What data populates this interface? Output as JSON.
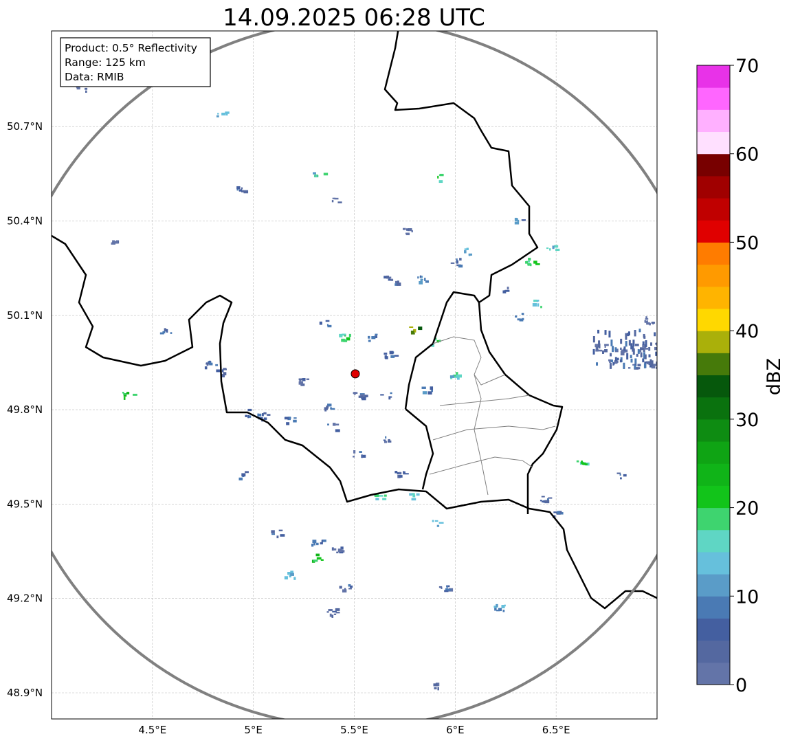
{
  "chart_data": {
    "type": "map",
    "title": "14.09.2025 06:28 UTC",
    "info_box": [
      "Product: 0.5° Reflectivity",
      "Range: 125 km",
      "Data: RMIB"
    ],
    "extent": {
      "lon": [
        4.0,
        7.0
      ],
      "lat": [
        48.817,
        51.004
      ]
    },
    "x_ticks": [
      {
        "value": 4.5,
        "label": "4.5°E"
      },
      {
        "value": 5.0,
        "label": "5°E"
      },
      {
        "value": 5.5,
        "label": "5.5°E"
      },
      {
        "value": 6.0,
        "label": "6°E"
      },
      {
        "value": 6.5,
        "label": "6.5°E"
      }
    ],
    "y_ticks": [
      {
        "value": 50.7,
        "label": "50.7°N"
      },
      {
        "value": 50.4,
        "label": "50.4°N"
      },
      {
        "value": 50.1,
        "label": "50.1°N"
      },
      {
        "value": 49.8,
        "label": "49.8°N"
      },
      {
        "value": 49.5,
        "label": "49.5°N"
      },
      {
        "value": 49.2,
        "label": "49.2°N"
      },
      {
        "value": 48.9,
        "label": "48.9°N"
      }
    ],
    "grid": true,
    "radar": {
      "lon": 5.505,
      "lat": 49.914,
      "range_km": 125,
      "marker_color": "#e00000",
      "ring_color": "#808080"
    },
    "colorbar": {
      "label": "dBZ",
      "range": [
        0,
        70
      ],
      "step": 2.5,
      "ticks": [
        0,
        10,
        20,
        30,
        40,
        50,
        60,
        70
      ],
      "colors": [
        "#6374a8",
        "#5468a0",
        "#445fa0",
        "#4a7ab4",
        "#5a9cc8",
        "#66c0dc",
        "#5fd6c4",
        "#3ed46f",
        "#12c41a",
        "#10b418",
        "#0fa414",
        "#0e8c12",
        "#0a720e",
        "#06580c",
        "#467a0a",
        "#aab00a",
        "#ffd800",
        "#ffb400",
        "#ff9a00",
        "#ff7c00",
        "#e00000",
        "#c00000",
        "#a00000",
        "#780000",
        "#ffe0ff",
        "#ffb0ff",
        "#ff66ff",
        "#e832e8"
      ]
    },
    "echoes": [
      [
        4.143,
        50.825,
        5
      ],
      [
        4.836,
        50.742,
        15
      ],
      [
        4.932,
        50.508,
        10
      ],
      [
        5.321,
        50.552,
        20
      ],
      [
        5.416,
        50.469,
        5
      ],
      [
        5.928,
        50.539,
        22
      ],
      [
        4.297,
        50.342,
        5
      ],
      [
        5.758,
        50.371,
        5
      ],
      [
        5.724,
        50.207,
        8
      ],
      [
        5.655,
        50.218,
        8
      ],
      [
        5.826,
        50.218,
        12
      ],
      [
        5.997,
        50.272,
        8
      ],
      [
        6.065,
        50.305,
        15
      ],
      [
        6.372,
        50.272,
        22
      ],
      [
        6.474,
        50.316,
        20
      ],
      [
        6.321,
        50.403,
        12
      ],
      [
        6.235,
        50.185,
        10
      ],
      [
        6.304,
        50.097,
        15
      ],
      [
        6.406,
        50.141,
        18
      ],
      [
        5.451,
        50.032,
        25
      ],
      [
        5.348,
        50.076,
        10
      ],
      [
        5.584,
        50.032,
        10
      ],
      [
        5.672,
        49.978,
        12
      ],
      [
        5.792,
        50.054,
        40
      ],
      [
        5.894,
        50.021,
        22
      ],
      [
        5.997,
        49.912,
        18
      ],
      [
        5.86,
        49.868,
        12
      ],
      [
        5.655,
        49.846,
        10
      ],
      [
        5.519,
        49.846,
        8
      ],
      [
        5.246,
        49.89,
        8
      ],
      [
        5.365,
        49.814,
        10
      ],
      [
        5.178,
        49.77,
        10
      ],
      [
        5.041,
        49.781,
        10
      ],
      [
        4.956,
        49.792,
        12
      ],
      [
        4.836,
        49.923,
        8
      ],
      [
        4.785,
        49.945,
        10
      ],
      [
        5.382,
        49.748,
        8
      ],
      [
        5.519,
        49.661,
        8
      ],
      [
        5.655,
        49.705,
        10
      ],
      [
        5.724,
        49.596,
        8
      ],
      [
        5.621,
        49.53,
        20
      ],
      [
        5.792,
        49.53,
        18
      ],
      [
        5.894,
        49.442,
        18
      ],
      [
        5.109,
        49.409,
        8
      ],
      [
        5.314,
        49.377,
        10
      ],
      [
        5.314,
        49.333,
        25
      ],
      [
        5.416,
        49.355,
        8
      ],
      [
        5.177,
        49.278,
        15
      ],
      [
        5.451,
        49.235,
        10
      ],
      [
        5.382,
        49.158,
        8
      ],
      [
        6.218,
        49.173,
        15
      ],
      [
        5.945,
        49.235,
        10
      ],
      [
        5.894,
        48.923,
        5
      ],
      [
        6.816,
        49.595,
        8
      ],
      [
        6.628,
        49.639,
        22
      ],
      [
        4.375,
        49.846,
        25
      ],
      [
        4.563,
        50.054,
        10
      ],
      [
        4.939,
        49.595,
        10
      ],
      [
        6.44,
        49.519,
        10
      ],
      [
        6.509,
        49.475,
        10
      ],
      [
        6.713,
        49.999,
        5
      ],
      [
        6.816,
        49.988,
        5
      ],
      [
        6.918,
        49.999,
        5
      ],
      [
        6.986,
        50.01,
        5
      ],
      [
        6.952,
        50.087,
        5
      ],
      [
        6.782,
        49.956,
        8
      ],
      [
        6.884,
        49.945,
        5
      ],
      [
        6.969,
        49.945,
        5
      ]
    ]
  }
}
